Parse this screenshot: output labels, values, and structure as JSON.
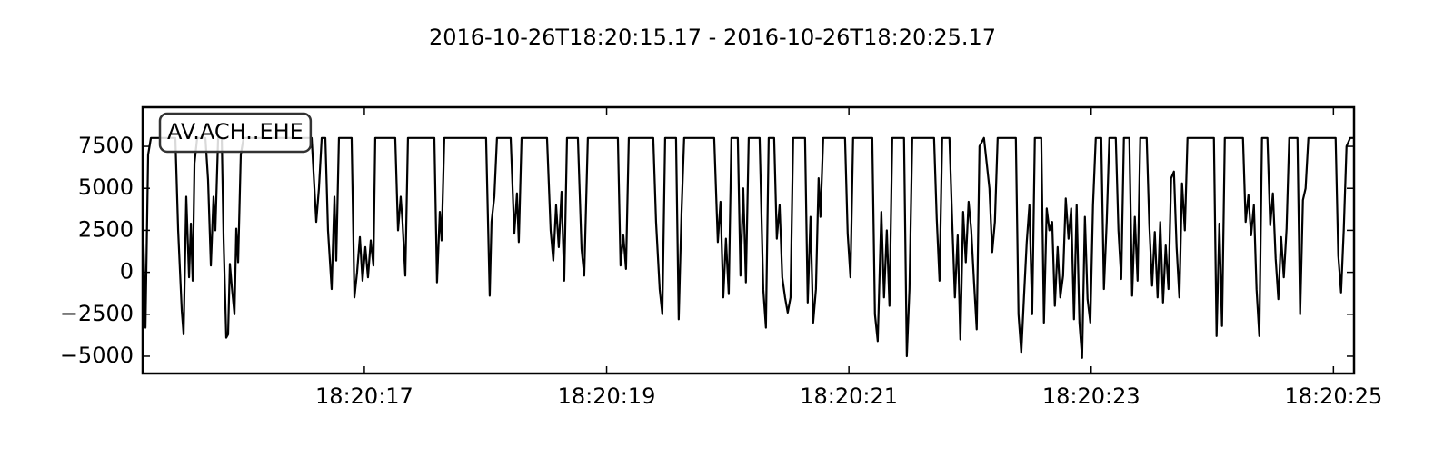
{
  "chart_data": {
    "type": "line",
    "title": "2016-10-26T18:20:15.17  -  2016-10-26T18:20:25.17",
    "xlim": [
      15.17,
      25.17
    ],
    "xticks": [
      {
        "value": 17,
        "label": "18:20:17"
      },
      {
        "value": 19,
        "label": "18:20:19"
      },
      {
        "value": 21,
        "label": "18:20:21"
      },
      {
        "value": 23,
        "label": "18:20:23"
      },
      {
        "value": 25,
        "label": "18:20:25"
      }
    ],
    "ylim": [
      -6030,
      9830
    ],
    "yticks": [
      {
        "value": -5000,
        "label": "−5000"
      },
      {
        "value": -2500,
        "label": "−2500"
      },
      0,
      2500,
      5000,
      7500
    ],
    "legend": "upper left",
    "series": [
      {
        "name": "AV.ACH..EHE",
        "color": "#000000",
        "x": [
          15.17,
          15.193,
          15.215,
          15.238,
          15.44,
          15.463,
          15.493,
          15.508,
          15.53,
          15.553,
          15.568,
          15.583,
          15.598,
          15.62,
          15.688,
          15.71,
          15.733,
          15.755,
          15.77,
          15.793,
          15.823,
          15.838,
          15.86,
          15.875,
          15.89,
          15.905,
          15.928,
          15.943,
          15.958,
          15.98,
          16.003,
          16.565,
          16.588,
          16.603,
          16.625,
          16.648,
          16.678,
          16.7,
          16.73,
          16.753,
          16.768,
          16.79,
          16.895,
          16.918,
          16.94,
          16.963,
          16.985,
          17.008,
          17.03,
          17.053,
          17.075,
          17.09,
          17.255,
          17.278,
          17.3,
          17.315,
          17.338,
          17.36,
          17.578,
          17.6,
          17.623,
          17.638,
          17.66,
          18.005,
          18.035,
          18.05,
          18.073,
          18.095,
          18.208,
          18.238,
          18.26,
          18.275,
          18.298,
          18.508,
          18.538,
          18.56,
          18.583,
          18.605,
          18.628,
          18.65,
          18.673,
          18.763,
          18.793,
          18.815,
          18.845,
          19.093,
          19.115,
          19.138,
          19.16,
          19.183,
          19.385,
          19.408,
          19.438,
          19.46,
          19.483,
          19.573,
          19.595,
          19.618,
          19.64,
          19.888,
          19.918,
          19.94,
          19.963,
          19.985,
          20.008,
          20.03,
          20.083,
          20.105,
          20.128,
          20.15,
          20.173,
          20.263,
          20.293,
          20.315,
          20.338,
          20.383,
          20.405,
          20.428,
          20.45,
          20.473,
          20.495,
          20.518,
          20.54,
          20.638,
          20.66,
          20.683,
          20.705,
          20.728,
          20.75,
          20.765,
          20.788,
          20.968,
          20.99,
          21.013,
          21.035,
          21.193,
          21.215,
          21.238,
          21.268,
          21.29,
          21.313,
          21.335,
          21.358,
          21.455,
          21.478,
          21.5,
          21.523,
          21.703,
          21.725,
          21.748,
          21.77,
          21.83,
          21.853,
          21.875,
          21.898,
          21.92,
          21.943,
          21.965,
          21.988,
          22.01,
          22.033,
          22.055,
          22.078,
          22.115,
          22.16,
          22.183,
          22.205,
          22.228,
          22.378,
          22.4,
          22.423,
          22.445,
          22.468,
          22.49,
          22.513,
          22.535,
          22.588,
          22.61,
          22.633,
          22.655,
          22.678,
          22.7,
          22.723,
          22.745,
          22.768,
          22.79,
          22.813,
          22.835,
          22.858,
          22.88,
          22.903,
          22.925,
          22.948,
          22.97,
          22.993,
          23.015,
          23.038,
          23.083,
          23.105,
          23.128,
          23.15,
          23.203,
          23.225,
          23.248,
          23.27,
          23.315,
          23.338,
          23.36,
          23.383,
          23.405,
          23.458,
          23.48,
          23.503,
          23.525,
          23.548,
          23.57,
          23.593,
          23.615,
          23.638,
          23.66,
          23.683,
          23.705,
          23.728,
          23.75,
          23.773,
          23.795,
          24.013,
          24.035,
          24.058,
          24.08,
          24.103,
          24.253,
          24.275,
          24.298,
          24.32,
          24.343,
          24.365,
          24.388,
          24.41,
          24.455,
          24.478,
          24.5,
          24.523,
          24.545,
          24.568,
          24.59,
          24.613,
          24.635,
          24.703,
          24.725,
          24.748,
          24.77,
          24.793,
          25.018,
          25.04,
          25.063,
          25.085,
          25.108,
          25.138,
          25.17
        ],
        "values": [
          3800,
          -3300,
          7000,
          8000,
          8000,
          2500,
          -2300,
          -3700,
          4500,
          -300,
          2900,
          -500,
          6500,
          8000,
          8000,
          5500,
          400,
          4500,
          2500,
          8000,
          8000,
          2000,
          -3900,
          -3700,
          500,
          -800,
          -2500,
          2600,
          600,
          7000,
          8000,
          8000,
          5000,
          3000,
          5000,
          8000,
          8000,
          2500,
          -1000,
          4500,
          700,
          8000,
          8000,
          -1500,
          0,
          2100,
          -500,
          1500,
          -300,
          1900,
          400,
          8000,
          8000,
          2500,
          4500,
          3000,
          -200,
          8000,
          8000,
          -600,
          3600,
          1900,
          8000,
          8000,
          -1400,
          3000,
          4500,
          8000,
          8000,
          2300,
          4700,
          1800,
          8000,
          8000,
          2500,
          700,
          4000,
          1500,
          4800,
          -500,
          8000,
          8000,
          1400,
          -200,
          8000,
          8000,
          400,
          2200,
          200,
          8000,
          8000,
          3000,
          -1000,
          -2500,
          8000,
          8000,
          -2800,
          3500,
          8000,
          8000,
          1800,
          4200,
          -1500,
          2000,
          -1300,
          8000,
          8000,
          -200,
          5000,
          -600,
          8000,
          8000,
          -1000,
          -3300,
          8000,
          8000,
          2000,
          4000,
          -300,
          -1500,
          -2400,
          -1500,
          8000,
          8000,
          -1800,
          3300,
          -3000,
          -1000,
          5600,
          3300,
          8000,
          8000,
          2300,
          -300,
          8000,
          8000,
          -2500,
          -4100,
          3600,
          -1500,
          2500,
          -2000,
          8000,
          8000,
          -5000,
          -1000,
          8000,
          8000,
          3200,
          -500,
          8000,
          8000,
          3000,
          -1500,
          2200,
          -4000,
          3600,
          600,
          4200,
          2500,
          -600,
          -3400,
          7500,
          8000,
          5000,
          1200,
          3000,
          8000,
          8000,
          -2500,
          -4800,
          -1500,
          1800,
          4000,
          -2500,
          8000,
          8000,
          -3000,
          3800,
          2500,
          3000,
          -2000,
          1500,
          -1500,
          -200,
          4400,
          2000,
          3800,
          -2800,
          4000,
          -3000,
          -5100,
          3300,
          -1600,
          -3000,
          4000,
          8000,
          8000,
          -1000,
          3000,
          8000,
          8000,
          2500,
          -400,
          8000,
          8000,
          -1400,
          3300,
          -500,
          8000,
          8000,
          2800,
          -800,
          2400,
          -1500,
          3000,
          -1800,
          1600,
          -1000,
          5600,
          6000,
          1500,
          -1500,
          5300,
          2500,
          8000,
          8000,
          -3800,
          2900,
          -3200,
          8000,
          8000,
          3000,
          4600,
          2200,
          4000,
          -1000,
          -3800,
          8000,
          8000,
          2800,
          4700,
          800,
          -1600,
          2100,
          -300,
          2600,
          8000,
          8000,
          -2500,
          4300,
          5000,
          8000,
          8000,
          1000,
          -1200,
          2500,
          7500,
          8000,
          8000
        ]
      }
    ]
  }
}
